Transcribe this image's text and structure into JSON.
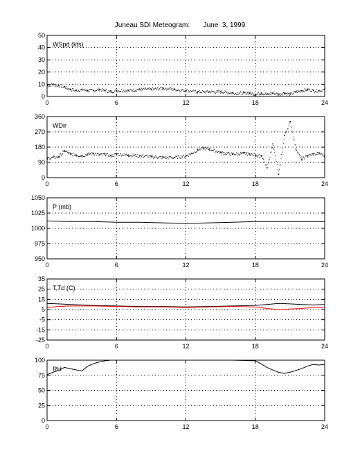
{
  "title": "Juneau SDI Meteogram:       June  3, 1999",
  "chart_data": [
    {
      "type": "line",
      "label": "WSpd (kts)",
      "xlim": [
        0,
        24
      ],
      "ylim": [
        0,
        50
      ],
      "xticks": [
        0,
        6,
        12,
        18,
        24
      ],
      "yticks": [
        0,
        10,
        20,
        30,
        40,
        50
      ],
      "grid": true,
      "style": "dots",
      "series": [
        {
          "color": "#000000",
          "x": [
            0,
            0.5,
            1,
            1.5,
            2,
            2.5,
            3,
            3.5,
            4,
            4.5,
            5,
            5.5,
            6,
            7,
            8,
            9,
            10,
            11,
            12,
            13,
            14,
            15,
            16,
            17,
            17.5,
            18,
            18.5,
            19,
            19.5,
            20,
            20.5,
            21,
            21.5,
            22,
            22.5,
            23,
            23.5,
            24
          ],
          "y": [
            9,
            10,
            9,
            8,
            6,
            5,
            6,
            5,
            5,
            6,
            5,
            4,
            5,
            5,
            6,
            6,
            7,
            6,
            5,
            4,
            4,
            4,
            3,
            3,
            3,
            2,
            3,
            2,
            3,
            2,
            3,
            2,
            4,
            5,
            6,
            5,
            5,
            6
          ]
        }
      ]
    },
    {
      "type": "scatter",
      "label": "WDir",
      "xlim": [
        0,
        24
      ],
      "ylim": [
        0,
        360
      ],
      "xticks": [
        0,
        6,
        12,
        18,
        24
      ],
      "yticks": [
        0,
        90,
        180,
        270,
        360
      ],
      "grid": true,
      "style": "dots",
      "series": [
        {
          "color": "#000000",
          "x": [
            0,
            0.5,
            1,
            1.5,
            2,
            2.5,
            3,
            3.5,
            4,
            4.5,
            5,
            5.5,
            6,
            7,
            8,
            9,
            10,
            11,
            12,
            12.5,
            13,
            13.5,
            14,
            15,
            16,
            17,
            17.5,
            18,
            18.5,
            19,
            19.5,
            20,
            20.5,
            21,
            21.5,
            22,
            22.5,
            23,
            23.5,
            24
          ],
          "y": [
            115,
            120,
            125,
            160,
            140,
            135,
            130,
            140,
            145,
            135,
            140,
            130,
            140,
            135,
            130,
            125,
            120,
            120,
            130,
            145,
            165,
            175,
            170,
            150,
            140,
            145,
            140,
            135,
            130,
            60,
            200,
            20,
            250,
            330,
            170,
            110,
            130,
            140,
            145,
            130
          ]
        }
      ]
    },
    {
      "type": "line",
      "label": "P (mb)",
      "xlim": [
        0,
        24
      ],
      "ylim": [
        950,
        1050
      ],
      "xticks": [
        0,
        6,
        12,
        18,
        24
      ],
      "yticks": [
        950,
        975,
        1000,
        1025,
        1050
      ],
      "grid": true,
      "series": [
        {
          "color": "#000000",
          "x": [
            0,
            2,
            4,
            6,
            8,
            10,
            12,
            14,
            16,
            18,
            20,
            22,
            24
          ],
          "y": [
            1012,
            1011,
            1011,
            1010,
            1010,
            1009,
            1008,
            1009,
            1010,
            1011,
            1011,
            1011,
            1011
          ]
        }
      ]
    },
    {
      "type": "line",
      "label": "T,Td (C)",
      "xlim": [
        0,
        24
      ],
      "ylim": [
        -25,
        35
      ],
      "xticks": [
        0,
        6,
        12,
        18,
        24
      ],
      "yticks": [
        -25,
        -15,
        -5,
        5,
        15,
        25,
        35
      ],
      "grid": true,
      "series": [
        {
          "color": "#000000",
          "x": [
            0,
            1,
            2,
            3,
            4,
            6,
            8,
            10,
            12,
            14,
            16,
            18,
            19,
            20,
            21,
            22,
            23,
            24
          ],
          "y": [
            11,
            10.5,
            10,
            9.5,
            9,
            8.5,
            8,
            8,
            7.5,
            8,
            8.5,
            9,
            10,
            11,
            10.5,
            10,
            9.5,
            10
          ]
        },
        {
          "color": "#ff0000",
          "x": [
            0,
            1,
            2,
            3,
            4,
            6,
            8,
            10,
            12,
            14,
            16,
            18,
            19,
            20,
            21,
            22,
            23,
            24
          ],
          "y": [
            7,
            8,
            8.5,
            8.5,
            8.5,
            8,
            7.5,
            7.5,
            7,
            7.5,
            8,
            7.5,
            6,
            5,
            5.5,
            6,
            7,
            7
          ]
        }
      ]
    },
    {
      "type": "line",
      "label": "RH",
      "xlim": [
        0,
        24
      ],
      "ylim": [
        0,
        100
      ],
      "xticks": [
        0,
        6,
        12,
        18,
        24
      ],
      "yticks": [
        0,
        25,
        50,
        75,
        100
      ],
      "grid": true,
      "series": [
        {
          "color": "#000000",
          "x": [
            0,
            0.5,
            1,
            1.5,
            2,
            2.5,
            3,
            3.5,
            4,
            4.5,
            5,
            5.5,
            6,
            8,
            10,
            12,
            14,
            16,
            18,
            18.5,
            19,
            19.5,
            20,
            20.5,
            21,
            21.5,
            22,
            22.5,
            23,
            23.5,
            24
          ],
          "y": [
            76,
            80,
            83,
            88,
            86,
            84,
            82,
            90,
            94,
            97,
            99,
            100,
            100,
            100,
            100,
            100,
            100,
            100,
            99,
            94,
            88,
            84,
            80,
            78,
            80,
            83,
            86,
            90,
            93,
            92,
            93
          ]
        }
      ]
    }
  ]
}
